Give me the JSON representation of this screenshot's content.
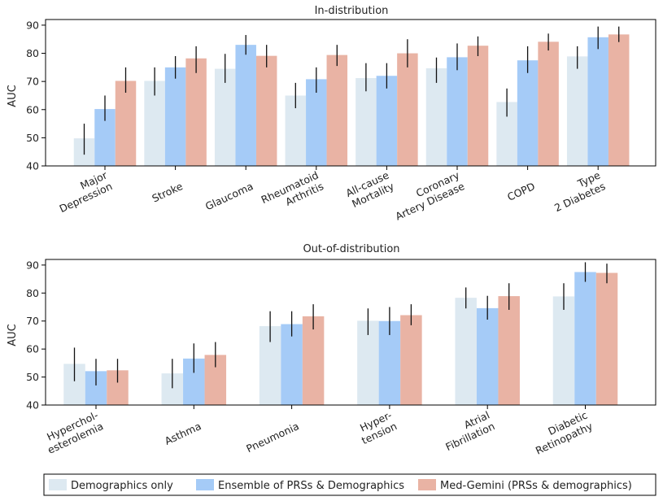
{
  "colors": {
    "demographics": "#dde9f1",
    "ensemble": "#a5cbf7",
    "medgemini": "#e9b3a4",
    "errorbar": "#111111",
    "axis": "#000000"
  },
  "legend": [
    {
      "key": "demographics",
      "label": "Demographics only"
    },
    {
      "key": "ensemble",
      "label": "Ensemble of PRSs & Demographics"
    },
    {
      "key": "medgemini",
      "label": "Med-Gemini (PRSs & demographics)"
    }
  ],
  "chart_data": [
    {
      "type": "bar",
      "title": "In-distribution",
      "ylabel": "AUC",
      "xlabel": "",
      "ylim": [
        40,
        92
      ],
      "yticks": [
        40,
        50,
        60,
        70,
        80,
        90
      ],
      "categories": [
        [
          "Major",
          "Depression"
        ],
        [
          "Stroke"
        ],
        [
          "Glaucoma"
        ],
        [
          "Rheumatoid",
          "Arthritis"
        ],
        [
          "All-cause",
          "Mortality"
        ],
        [
          "Coronary",
          "Artery Disease"
        ],
        [
          "COPD"
        ],
        [
          "Type",
          "2 Diabetes"
        ]
      ],
      "series": [
        {
          "name": "Demographics only",
          "key": "demographics",
          "values": [
            49.8,
            70.2,
            74.5,
            65.0,
            71.2,
            74.7,
            62.7,
            78.9
          ],
          "err_low": [
            44.0,
            65.0,
            69.5,
            60.5,
            66.5,
            69.5,
            57.5,
            74.5
          ],
          "err_high": [
            55.0,
            75.0,
            79.8,
            69.5,
            76.5,
            78.5,
            67.5,
            82.5
          ]
        },
        {
          "name": "Ensemble of PRSs & Demographics",
          "key": "ensemble",
          "values": [
            60.2,
            75.0,
            83.0,
            70.8,
            72.0,
            78.6,
            77.5,
            85.7
          ],
          "err_low": [
            56.0,
            71.0,
            79.5,
            66.0,
            67.5,
            74.0,
            73.0,
            81.5
          ],
          "err_high": [
            65.0,
            79.0,
            86.5,
            75.0,
            76.5,
            83.5,
            82.5,
            89.5
          ]
        },
        {
          "name": "Med-Gemini (PRSs & demographics)",
          "key": "medgemini",
          "values": [
            70.2,
            78.2,
            79.1,
            79.4,
            80.0,
            82.7,
            84.1,
            86.7
          ],
          "err_low": [
            66.0,
            73.0,
            75.0,
            75.5,
            75.0,
            79.0,
            81.0,
            84.0
          ],
          "err_high": [
            75.0,
            82.5,
            83.0,
            83.0,
            85.0,
            86.0,
            87.0,
            89.5
          ]
        }
      ]
    },
    {
      "type": "bar",
      "title": "Out-of-distribution",
      "ylabel": "AUC",
      "xlabel": "",
      "ylim": [
        40,
        92
      ],
      "yticks": [
        40,
        50,
        60,
        70,
        80,
        90
      ],
      "categories": [
        [
          "Hyperchol-",
          "esterolemia"
        ],
        [
          "Asthma"
        ],
        [
          "Pneumonia"
        ],
        [
          "Hyper-",
          "tension"
        ],
        [
          "Atrial",
          "Fibrillation"
        ],
        [
          "Diabetic",
          "Retinopathy"
        ]
      ],
      "series": [
        {
          "name": "Demographics only",
          "key": "demographics",
          "values": [
            54.7,
            51.3,
            68.2,
            70.1,
            78.3,
            78.8
          ],
          "err_low": [
            48.5,
            46.0,
            62.5,
            65.0,
            74.5,
            74.0
          ],
          "err_high": [
            60.5,
            56.5,
            73.5,
            74.5,
            82.0,
            83.5
          ]
        },
        {
          "name": "Ensemble of PRSs & Demographics",
          "key": "ensemble",
          "values": [
            52.1,
            56.6,
            68.9,
            70.0,
            74.6,
            87.5
          ],
          "err_low": [
            47.0,
            51.5,
            64.5,
            65.0,
            70.5,
            84.0
          ],
          "err_high": [
            56.5,
            62.0,
            73.5,
            75.0,
            79.0,
            91.0
          ]
        },
        {
          "name": "Med-Gemini (PRSs & demographics)",
          "key": "medgemini",
          "values": [
            52.4,
            57.9,
            71.7,
            72.1,
            78.9,
            87.2
          ],
          "err_low": [
            48.0,
            53.5,
            67.0,
            68.5,
            74.0,
            83.5
          ],
          "err_high": [
            56.5,
            62.5,
            76.0,
            76.0,
            83.5,
            90.5
          ]
        }
      ]
    }
  ]
}
